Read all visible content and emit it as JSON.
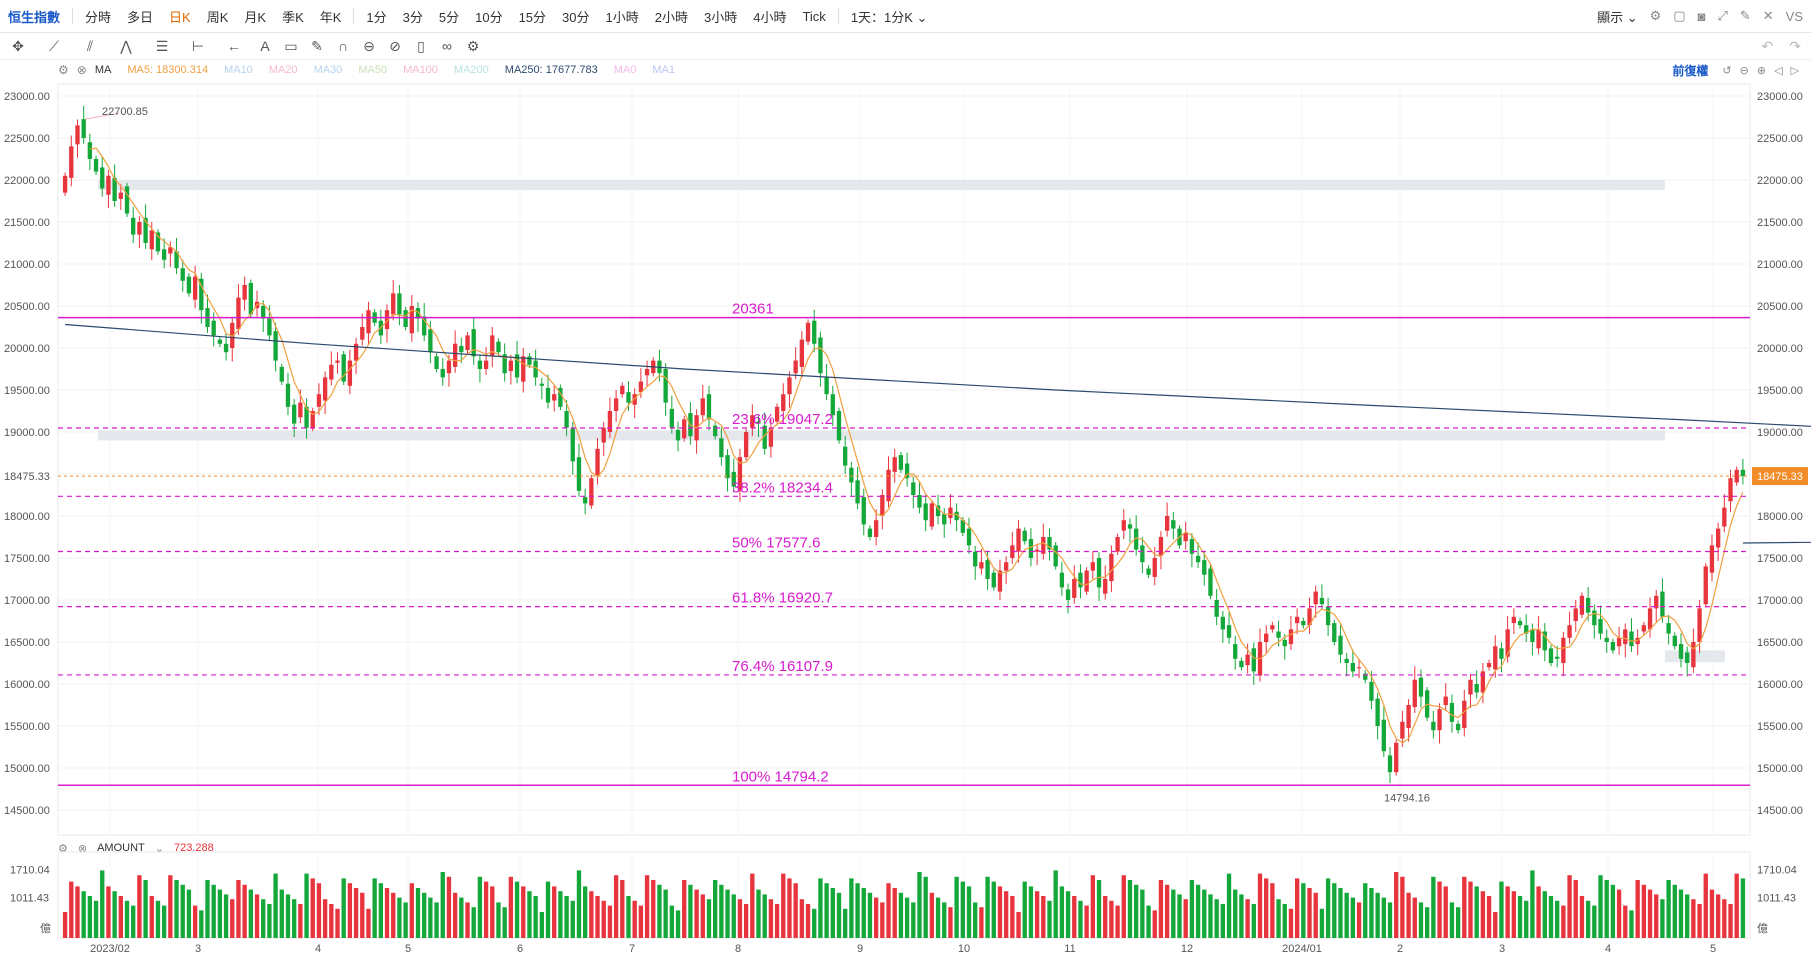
{
  "topbar": {
    "items": [
      "恒生指數",
      "分時",
      "多日",
      "日K",
      "周K",
      "月K",
      "季K",
      "年K",
      "1分",
      "3分",
      "5分",
      "10分",
      "15分",
      "30分",
      "1小時",
      "2小時",
      "3小時",
      "4小時",
      "Tick",
      "1天：1分K"
    ],
    "active": "日K",
    "display_label": "顯示",
    "vs_label": "VS"
  },
  "legend": {
    "ma_label": "MA",
    "ma5": "MA5: 18300.314",
    "ma10": "MA10",
    "ma20": "MA20",
    "ma30": "MA30",
    "ma50": "MA50",
    "ma100": "MA100",
    "ma200": "MA200",
    "ma250": "MA250: 17677.783",
    "ma0a": "MA0",
    "ma0b": "MA1",
    "fq_label": "前復權"
  },
  "colors": {
    "up": "#e8343d",
    "down": "#14a83a",
    "ma5": "#f0a040",
    "ma250": "#2c4a6e",
    "fib": "#d81bcf",
    "last": "#f28c28"
  },
  "chart_data": {
    "type": "candlestick",
    "ylim": [
      14500,
      23000
    ],
    "yticks": [
      "23000.00",
      "22500.00",
      "22000.00",
      "21500.00",
      "21000.00",
      "20500.00",
      "20000.00",
      "19500.00",
      "19000.00",
      "18500.00",
      "18000.00",
      "17500.00",
      "17000.00",
      "16500.00",
      "16000.00",
      "15500.00",
      "15000.00",
      "14500.00"
    ],
    "xticks": [
      "2023/02",
      "3",
      "4",
      "5",
      "6",
      "7",
      "8",
      "9",
      "10",
      "11",
      "12",
      "2024/01",
      "2",
      "3",
      "4",
      "5"
    ],
    "last_price": "18475.33",
    "high_label": "22700.85",
    "low_label": "14794.16",
    "fib_levels": [
      {
        "label": "20361",
        "value": 20361
      },
      {
        "label": "23.6% 19047.2",
        "value": 19047.2
      },
      {
        "label": "38.2% 18234.4",
        "value": 18234.4
      },
      {
        "label": "50% 17577.6",
        "value": 17577.6
      },
      {
        "label": "61.8% 16920.7",
        "value": 16920.7
      },
      {
        "label": "76.4% 16107.9",
        "value": 16107.9
      },
      {
        "label": "100% 14794.2",
        "value": 14794.2
      }
    ],
    "closes": [
      22050,
      22400,
      22650,
      22500,
      22250,
      22100,
      21900,
      22050,
      21750,
      21850,
      21600,
      21350,
      21500,
      21250,
      21400,
      21150,
      21050,
      21200,
      20950,
      20800,
      20650,
      20850,
      20450,
      20250,
      20150,
      20050,
      19950,
      20300,
      20600,
      20750,
      20400,
      20550,
      20350,
      20150,
      19850,
      19600,
      19300,
      19100,
      19350,
      19050,
      19250,
      19450,
      19650,
      19800,
      19850,
      19600,
      19850,
      20050,
      20250,
      20450,
      20300,
      20150,
      20450,
      20650,
      20400,
      20250,
      20500,
      20350,
      20150,
      19950,
      19750,
      19650,
      19850,
      20050,
      19950,
      20150,
      19900,
      19750,
      19850,
      20150,
      19950,
      19700,
      19850,
      19650,
      19900,
      19800,
      19650,
      19550,
      19350,
      19450,
      19300,
      19050,
      18650,
      18300,
      18150,
      18450,
      18800,
      19050,
      19250,
      19400,
      19550,
      19350,
      19450,
      19600,
      19750,
      19850,
      19700,
      19350,
      19050,
      18900,
      19150,
      18950,
      19200,
      19400,
      19150,
      18950,
      18700,
      18450,
      18350,
      18700,
      19000,
      19200,
      19100,
      18800,
      19050,
      19300,
      19450,
      19650,
      19850,
      20100,
      20300,
      20050,
      19700,
      19450,
      19200,
      18900,
      18600,
      18400,
      18150,
      17900,
      17750,
      17950,
      18250,
      18550,
      18700,
      18550,
      18450,
      18250,
      18100,
      17950,
      18150,
      18000,
      17900,
      18100,
      17950,
      17800,
      17650,
      17400,
      17450,
      17250,
      17150,
      17350,
      17450,
      17650,
      17850,
      17700,
      17500,
      17600,
      17750,
      17600,
      17400,
      17150,
      17000,
      17250,
      17150,
      17350,
      17450,
      17150,
      17250,
      17550,
      17750,
      17950,
      17850,
      17600,
      17450,
      17300,
      17500,
      17750,
      18000,
      17850,
      17650,
      17800,
      17550,
      17450,
      17300,
      17050,
      16800,
      16650,
      16550,
      16300,
      16200,
      16350,
      16150,
      16500,
      16600,
      16700,
      16550,
      16450,
      16650,
      16800,
      16700,
      16900,
      17100,
      16950,
      16700,
      16500,
      16350,
      16250,
      16150,
      16200,
      16050,
      15800,
      15500,
      15200,
      14950,
      15300,
      15550,
      15750,
      16050,
      15850,
      15600,
      15450,
      15700,
      15850,
      15550,
      15450,
      15800,
      16050,
      15900,
      16150,
      16250,
      16450,
      16300,
      16650,
      16800,
      16700,
      16600,
      16500,
      16650,
      16400,
      16250,
      16300,
      16550,
      16700,
      16900,
      17050,
      16850,
      16700,
      16600,
      16500,
      16400,
      16550,
      16650,
      16450,
      16550,
      16700,
      16900,
      17050,
      16800,
      16600,
      16450,
      16300,
      16250,
      16500,
      16900,
      17400,
      17650,
      17850,
      18100,
      18450,
      18550,
      18475
    ]
  },
  "volume": {
    "label": "AMOUNT",
    "value": "723.288",
    "yticks": [
      "1710.04",
      "1011.43"
    ],
    "unit": "億"
  }
}
